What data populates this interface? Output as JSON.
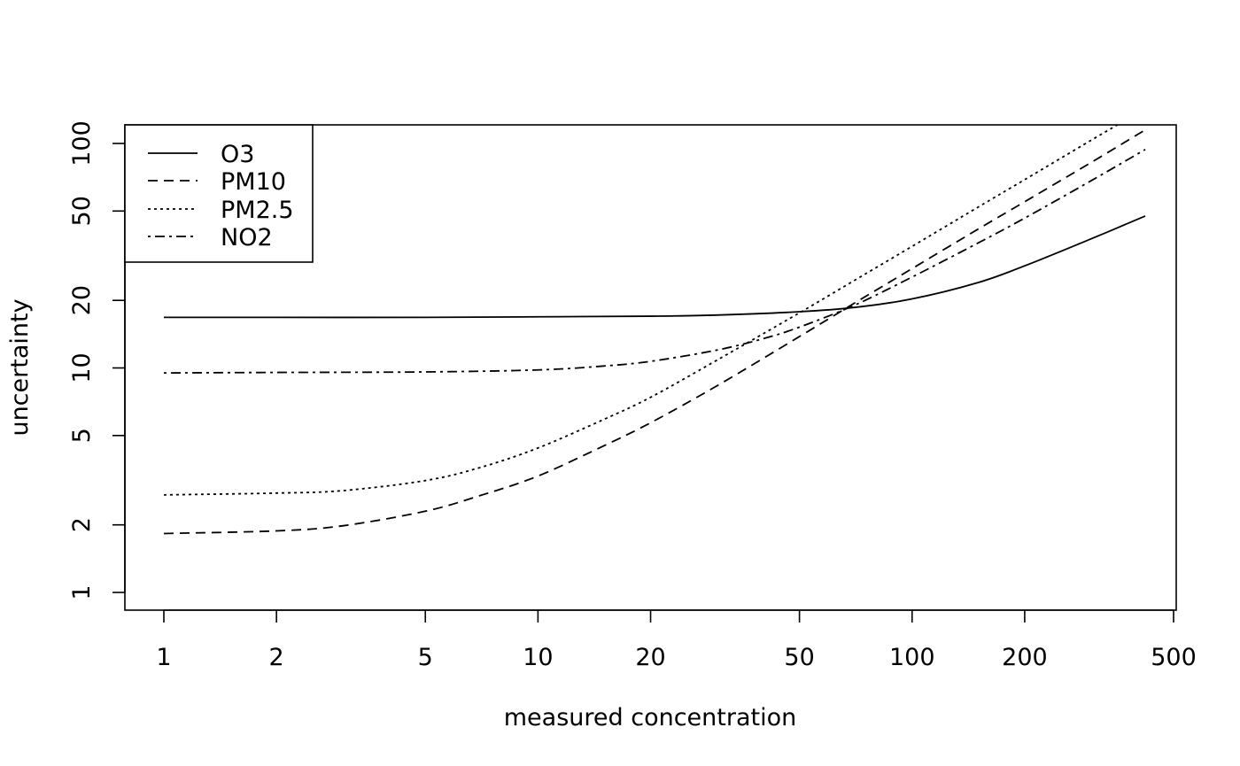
{
  "chart_data": {
    "type": "line",
    "xlabel": "measured concentration",
    "ylabel": "uncertainty",
    "x_scale": "log",
    "y_scale": "log",
    "xlim": [
      0.8,
      500
    ],
    "ylim": [
      0.8,
      120
    ],
    "x_ticks": [
      1,
      2,
      5,
      10,
      20,
      50,
      100,
      200,
      500
    ],
    "x_tick_labels": [
      "1",
      "2",
      "5",
      "10",
      "20",
      "50",
      "100",
      "200",
      "500"
    ],
    "y_ticks": [
      1,
      2,
      5,
      10,
      20,
      50,
      100
    ],
    "y_tick_labels": [
      "1",
      "2",
      "5",
      "10",
      "20",
      "50",
      "100"
    ],
    "grid": false,
    "legend_position": "top-left",
    "series": [
      {
        "name": "O3",
        "dash": "solid",
        "x": [
          1,
          2,
          5,
          10,
          20,
          30,
          50,
          70,
          100,
          150,
          200,
          300,
          420
        ],
        "y": [
          16.8,
          16.8,
          16.8,
          16.9,
          17.0,
          17.2,
          17.8,
          18.6,
          20.3,
          24.0,
          28.5,
          37.5,
          47.5
        ]
      },
      {
        "name": "PM10",
        "dash": "dashed",
        "x": [
          1,
          2,
          3,
          5,
          7,
          10,
          15,
          20,
          30,
          50,
          70,
          100,
          150,
          200,
          300,
          420
        ],
        "y": [
          1.83,
          1.88,
          1.98,
          2.3,
          2.7,
          3.3,
          4.5,
          5.7,
          8.3,
          13.8,
          19.4,
          27.7,
          41.5,
          55.0,
          82.0,
          115.0
        ]
      },
      {
        "name": "PM2.5",
        "dash": "dotted",
        "x": [
          1,
          2,
          3,
          5,
          7,
          10,
          15,
          20,
          30,
          50,
          70,
          100,
          150,
          200,
          300,
          360
        ],
        "y": [
          2.72,
          2.77,
          2.84,
          3.15,
          3.6,
          4.4,
          5.9,
          7.4,
          10.8,
          17.6,
          24.5,
          34.8,
          52.0,
          69.0,
          103.0,
          123.0
        ]
      },
      {
        "name": "NO2",
        "dash": "dashdot",
        "x": [
          1,
          2,
          5,
          10,
          15,
          20,
          30,
          40,
          50,
          70,
          100,
          150,
          200,
          300,
          420
        ],
        "y": [
          9.5,
          9.55,
          9.6,
          9.8,
          10.2,
          10.7,
          12.0,
          13.5,
          15.2,
          19.0,
          25.4,
          36.0,
          46.5,
          68.0,
          94.0
        ]
      }
    ]
  }
}
